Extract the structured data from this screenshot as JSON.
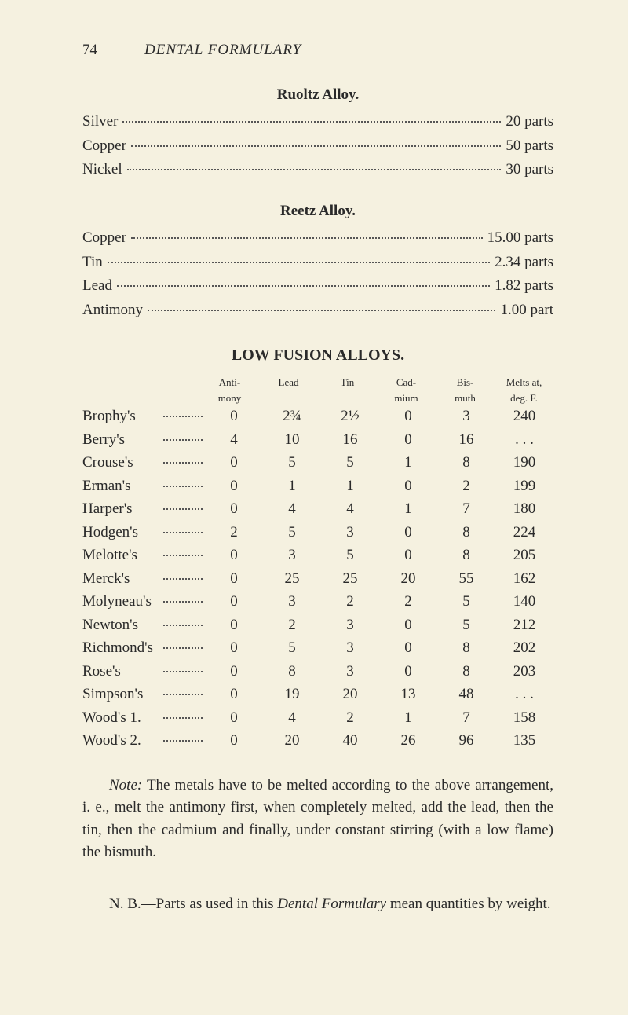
{
  "header": {
    "page_number": "74",
    "running_title": "DENTAL FORMULARY"
  },
  "ruoltz": {
    "title": "Ruoltz Alloy.",
    "items": [
      {
        "name": "Silver",
        "value": "20 parts"
      },
      {
        "name": "Copper",
        "value": "50 parts"
      },
      {
        "name": "Nickel",
        "value": "30 parts"
      }
    ]
  },
  "reetz": {
    "title": "Reetz Alloy.",
    "items": [
      {
        "name": "Copper",
        "value": "15.00 parts"
      },
      {
        "name": "Tin",
        "value": "2.34 parts"
      },
      {
        "name": "Lead",
        "value": "1.82 parts"
      },
      {
        "name": "Antimony",
        "value": "1.00 part"
      }
    ]
  },
  "low_fusion": {
    "heading": "LOW FUSION ALLOYS.",
    "columns": [
      {
        "line1": "Anti-",
        "line2": "mony"
      },
      {
        "line1": "",
        "line2": "Lead"
      },
      {
        "line1": "",
        "line2": "Tin"
      },
      {
        "line1": "Cad-",
        "line2": "mium"
      },
      {
        "line1": "Bis-",
        "line2": "muth"
      },
      {
        "line1": "Melts at,",
        "line2": "deg. F."
      }
    ],
    "rows": [
      {
        "name": "Brophy's",
        "v": [
          "0",
          "2¾",
          "2½",
          "0",
          "3",
          "240"
        ]
      },
      {
        "name": "Berry's",
        "v": [
          "4",
          "10",
          "16",
          "0",
          "16",
          ". . ."
        ]
      },
      {
        "name": "Crouse's",
        "v": [
          "0",
          "5",
          "5",
          "1",
          "8",
          "190"
        ]
      },
      {
        "name": "Erman's",
        "v": [
          "0",
          "1",
          "1",
          "0",
          "2",
          "199"
        ]
      },
      {
        "name": "Harper's",
        "v": [
          "0",
          "4",
          "4",
          "1",
          "7",
          "180"
        ]
      },
      {
        "name": "Hodgen's",
        "v": [
          "2",
          "5",
          "3",
          "0",
          "8",
          "224"
        ]
      },
      {
        "name": "Melotte's",
        "v": [
          "0",
          "3",
          "5",
          "0",
          "8",
          "205"
        ]
      },
      {
        "name": "Merck's",
        "v": [
          "0",
          "25",
          "25",
          "20",
          "55",
          "162"
        ]
      },
      {
        "name": "Molyneau's",
        "v": [
          "0",
          "3",
          "2",
          "2",
          "5",
          "140"
        ]
      },
      {
        "name": "Newton's",
        "v": [
          "0",
          "2",
          "3",
          "0",
          "5",
          "212"
        ]
      },
      {
        "name": "Richmond's",
        "v": [
          "0",
          "5",
          "3",
          "0",
          "8",
          "202"
        ]
      },
      {
        "name": "Rose's",
        "v": [
          "0",
          "8",
          "3",
          "0",
          "8",
          "203"
        ]
      },
      {
        "name": "Simpson's",
        "v": [
          "0",
          "19",
          "20",
          "13",
          "48",
          ". . ."
        ]
      },
      {
        "name": "Wood's 1.",
        "v": [
          "0",
          "4",
          "2",
          "1",
          "7",
          "158"
        ]
      },
      {
        "name": "Wood's 2.",
        "v": [
          "0",
          "20",
          "40",
          "26",
          "96",
          "135"
        ]
      }
    ]
  },
  "note": {
    "label": "Note:",
    "text": "The metals have to be melted according to the above arrangement, i. e., melt the antimony first, when completely melted, add the lead, then the tin, then the cadmium and finally, under constant stirring (with a low flame) the bismuth."
  },
  "footnote": {
    "prefix": "N. B.—Parts as used in this ",
    "italic": "Dental Formulary",
    "suffix": " mean quantities by weight."
  }
}
